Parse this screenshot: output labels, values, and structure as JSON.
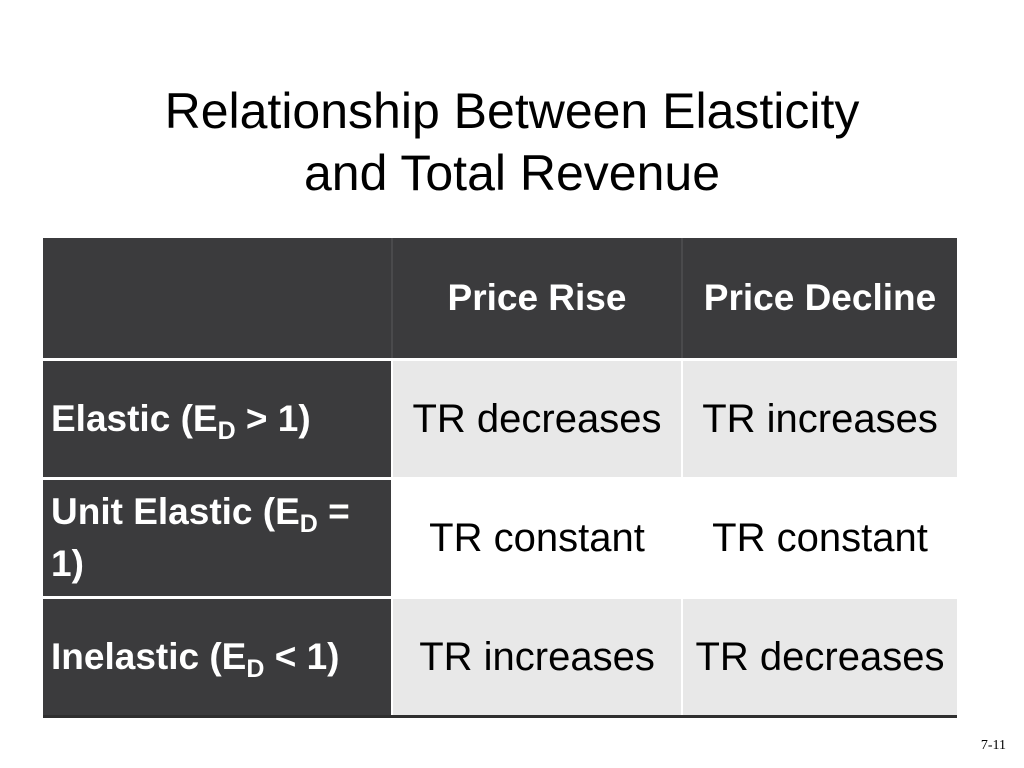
{
  "title": {
    "line1": "Relationship Between Elasticity",
    "line2": "and Total Revenue"
  },
  "table": {
    "headers": [
      "",
      "Price Rise",
      "Price Decline"
    ],
    "rows": [
      {
        "label_pre": "Elastic (E",
        "label_sub": "D",
        "label_post": " > 1)",
        "price_rise": "TR decreases",
        "price_decline": "TR increases"
      },
      {
        "label_pre": "Unit Elastic (E",
        "label_sub": "D",
        "label_post": " = 1)",
        "price_rise": "TR constant",
        "price_decline": "TR constant"
      },
      {
        "label_pre": "Inelastic (E",
        "label_sub": "D",
        "label_post": " < 1)",
        "price_rise": "TR increases",
        "price_decline": "TR decreases"
      }
    ]
  },
  "footer": {
    "slide_number": "7-11"
  },
  "colors": {
    "header_bg": "#3b3b3d",
    "shaded_row_bg": "#e8e8e8",
    "plain_row_bg": "#ffffff"
  }
}
